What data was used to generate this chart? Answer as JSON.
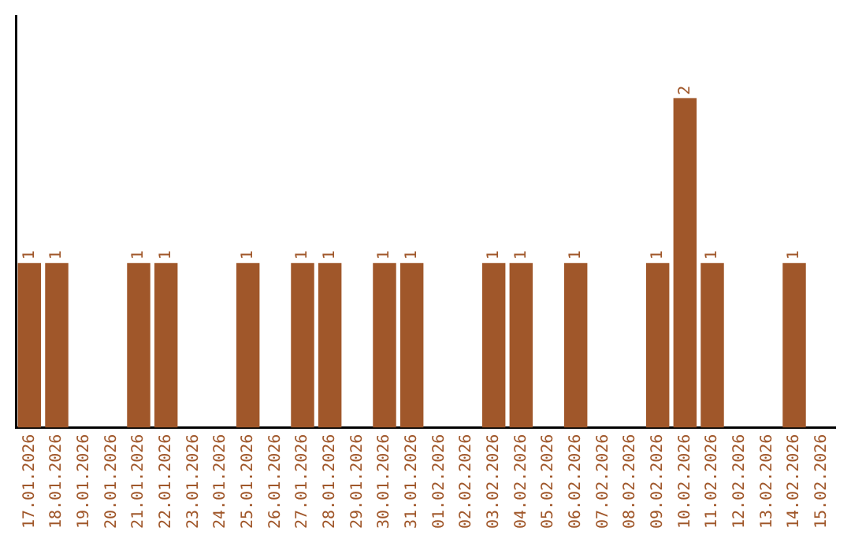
{
  "chart_data": {
    "type": "bar",
    "categories": [
      "17.01.2026",
      "18.01.2026",
      "19.01.2026",
      "20.01.2026",
      "21.01.2026",
      "22.01.2026",
      "23.01.2026",
      "24.01.2026",
      "25.01.2026",
      "26.01.2026",
      "27.01.2026",
      "28.01.2026",
      "29.01.2026",
      "30.01.2026",
      "31.01.2026",
      "01.02.2026",
      "02.02.2026",
      "03.02.2026",
      "04.02.2026",
      "05.02.2026",
      "06.02.2026",
      "07.02.2026",
      "08.02.2026",
      "09.02.2026",
      "10.02.2026",
      "11.02.2026",
      "12.02.2026",
      "13.02.2026",
      "14.02.2026",
      "15.02.2026"
    ],
    "values": [
      1,
      1,
      0,
      0,
      1,
      1,
      0,
      0,
      1,
      0,
      1,
      1,
      0,
      1,
      1,
      0,
      0,
      1,
      1,
      0,
      1,
      0,
      0,
      1,
      2,
      1,
      0,
      0,
      1,
      0
    ],
    "value_labels": [
      "1",
      "1",
      null,
      null,
      "1",
      "1",
      null,
      null,
      "1",
      null,
      "1",
      "1",
      null,
      "1",
      "1",
      null,
      null,
      "1",
      "1",
      null,
      "1",
      null,
      null,
      "1",
      "2",
      "1",
      null,
      null,
      "1",
      null
    ],
    "color": "#a0572a",
    "grid": false,
    "legend": false
  }
}
